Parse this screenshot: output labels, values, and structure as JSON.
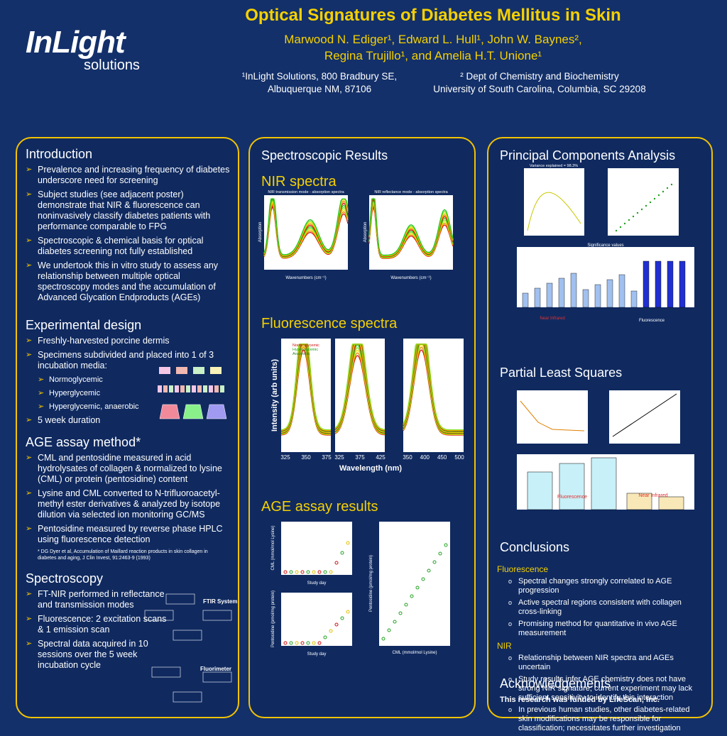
{
  "header": {
    "title": "Optical Signatures of Diabetes Mellitus in Skin",
    "authors": [
      "Marwood N. Ediger¹, Edward L. Hull¹, John W. Baynes², ",
      "Regina Trujillo¹, and Amelia H.T. Unione¹"
    ],
    "affiliations": [
      {
        "lines": [
          "¹InLight Solutions, 800 Bradbury SE,",
          "Albuquerque NM, 87106"
        ]
      },
      {
        "lines": [
          "² Dept of Chemistry and Biochemistry",
          "University of South Carolina, Columbia, SC  29208"
        ]
      }
    ],
    "logo": {
      "brand": "InLight",
      "sub": "solutions"
    }
  },
  "left": {
    "sections": [
      {
        "heading": "Introduction",
        "items": [
          {
            "text": "Prevalence and increasing frequency of diabetes underscore need for screening"
          },
          {
            "text": "Subject studies (see adjacent poster) demonstrate that NIR & fluorescence can noninvasively classify diabetes patients with performance comparable to FPG"
          },
          {
            "text": "Spectroscopic & chemical basis for optical diabetes screening not fully established"
          },
          {
            "text": "We undertook this in vitro study to assess any relationship between multiple optical spectroscopy modes and the accumulation of Advanced Glycation Endproducts (AGEs)"
          }
        ]
      },
      {
        "heading": "Experimental design",
        "items": [
          {
            "text": "Freshly-harvested porcine dermis"
          },
          {
            "text": "Specimens subdivided and placed into 1 of 3 incubation media:",
            "sub": [
              "Normoglycemic",
              "Hyperglycemic",
              "Hyperglycemic, anaerobic"
            ]
          },
          {
            "text": "5 week duration"
          }
        ]
      },
      {
        "heading": "AGE assay method*",
        "items": [
          {
            "text": "CML and pentosidine measured in acid hydrolysates of collagen & normalized to lysine (CML) or protein (pentosidine) content"
          },
          {
            "text": "Lysine and CML converted to N-trifluoroacetyl-methyl ester derivatives & analyzed by isotope dilution via selected ion monitoring GC/MS"
          },
          {
            "text": "Pentosidine measured by reverse phase HPLC using fluorescence detection"
          }
        ],
        "note": "* DG Dyer et al, Accumulation of Maillard reaction products in skin collagen in diabetes and aging, J Clin Invest, 91:2463-9 (1993)"
      },
      {
        "heading": "Spectroscopy",
        "items": [
          {
            "text": "FT-NIR performed in reflectance and transmission modes"
          },
          {
            "text": "Fluorescence: 2 excitation scans & 1 emission scan"
          },
          {
            "text": "Spectral data acquired in 10 sessions over the 5 week incubation cycle"
          }
        ]
      }
    ],
    "diagram_labels": [
      "FTIR System",
      "Fluorimeter"
    ]
  },
  "middle": {
    "heading": "Spectroscopic Results",
    "nir": {
      "heading": "NIR spectra",
      "panels": [
        "NIR transmission mode - absorption spectra",
        "NIR reflectance mode - absorption spectra"
      ],
      "ylabel": "Absorption",
      "xlabel": "Wavenumbers (cm⁻¹)"
    },
    "fluor": {
      "heading": "Fluorescence spectra",
      "ylabel": "Intensity (arb units)",
      "xlabel": "Wavelength (nm)",
      "ticks": [
        [
          "325",
          "350",
          "375"
        ],
        [
          "325",
          "375",
          "425"
        ],
        [
          "350",
          "400",
          "450",
          "500"
        ]
      ]
    },
    "legend": [
      "Normoglycemic",
      "Hyperglycemic",
      "Anaerobic"
    ],
    "age": {
      "heading": "AGE assay results",
      "labels": [
        "CML (mmol/mol Lysine)",
        "Study day",
        "Pentosidine (pmol/mg protein)",
        "Study day",
        "Pentosidine (pmol/mg protein)",
        "CML (mmol/mol Lysine)"
      ]
    }
  },
  "right": {
    "pca": {
      "heading": "Principal Components Analysis",
      "chart_title": "Variance explained = 98.3%",
      "sig": "Significance values",
      "groups": [
        "Near Infrared",
        "Fluorescence"
      ]
    },
    "pls": {
      "heading": "Partial Least Squares",
      "groups": [
        "Fluorescence",
        "Near Infrared"
      ]
    },
    "conclusions": {
      "heading": "Conclusions",
      "groups": [
        {
          "name": "Fluorescence",
          "items": [
            "Spectral changes strongly correlated to AGE progression",
            "Active spectral regions consistent with collagen cross-linking",
            "Promising method for quantitative in vivo AGE measurement"
          ]
        },
        {
          "name": "NIR",
          "items": [
            "Relationship between NIR spectra and AGEs uncertain",
            "Study results infer AGE chemistry does not have strong NIR signature; current experiment may lack sufficient sensitivity to identify this interaction",
            "In previous human studies, other diabetes-related skin modifications may be responsible for classification; necessitates further investigation"
          ]
        }
      ]
    },
    "ack": {
      "heading": "Acknowledgements",
      "text": "This research was funded by LifeScan, Inc."
    }
  }
}
